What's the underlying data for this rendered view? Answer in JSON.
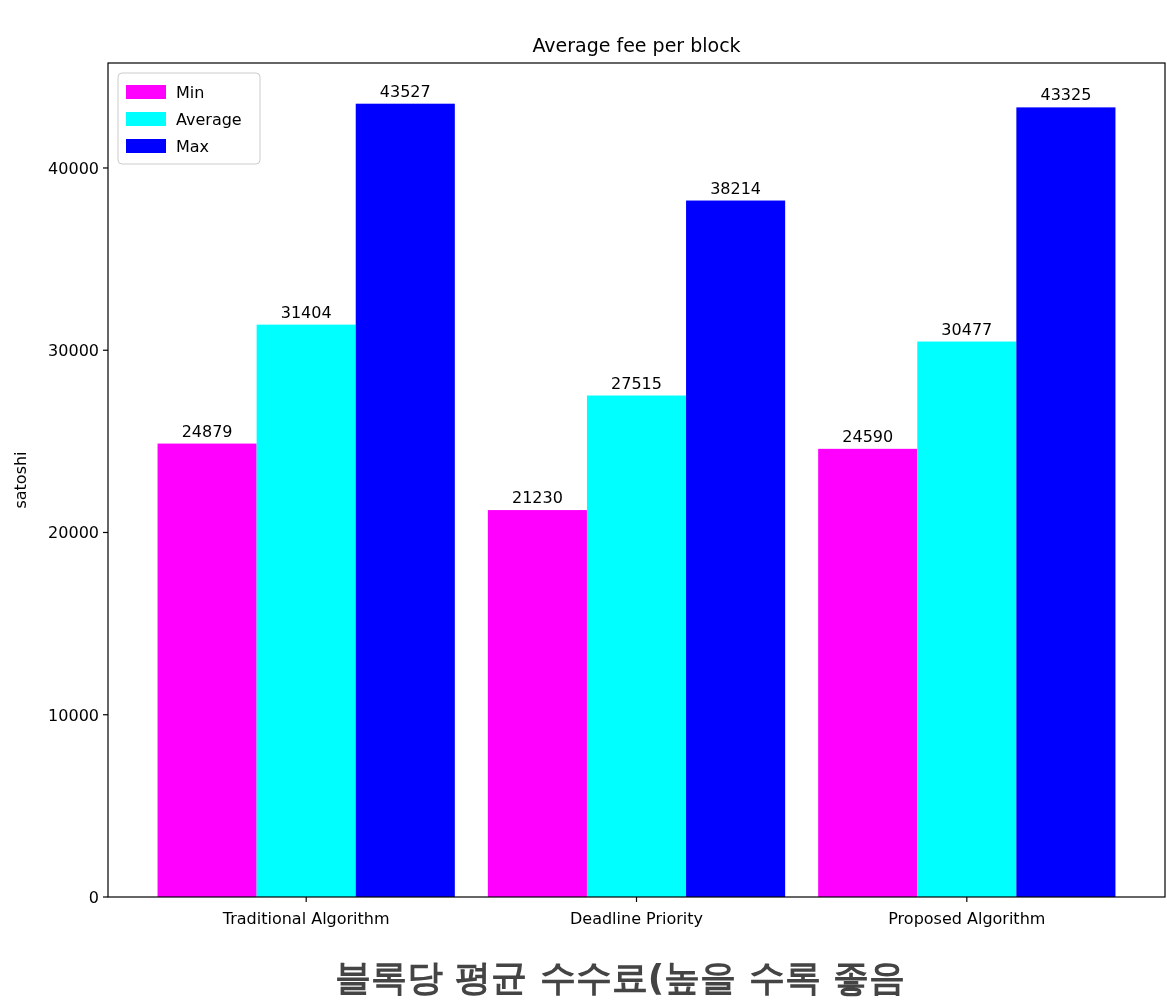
{
  "chart_data": {
    "type": "bar",
    "title": "Average fee per block",
    "ylabel": "satoshi",
    "categories": [
      "Traditional Algorithm",
      "Deadline Priority",
      "Proposed Algorithm"
    ],
    "series": [
      {
        "name": "Min",
        "color": "#ff00ff",
        "values": [
          24879,
          21230,
          24590
        ]
      },
      {
        "name": "Average",
        "color": "#00ffff",
        "values": [
          31404,
          27515,
          30477
        ]
      },
      {
        "name": "Max",
        "color": "#0000ff",
        "values": [
          43527,
          38214,
          43325
        ]
      }
    ],
    "ylim": [
      0,
      45760
    ],
    "yticks": [
      0,
      10000,
      20000,
      30000,
      40000
    ],
    "data_labels": true,
    "legend": "top left",
    "annotations": [
      "블록당 평균 수수료(높을 수록 좋음"
    ]
  }
}
